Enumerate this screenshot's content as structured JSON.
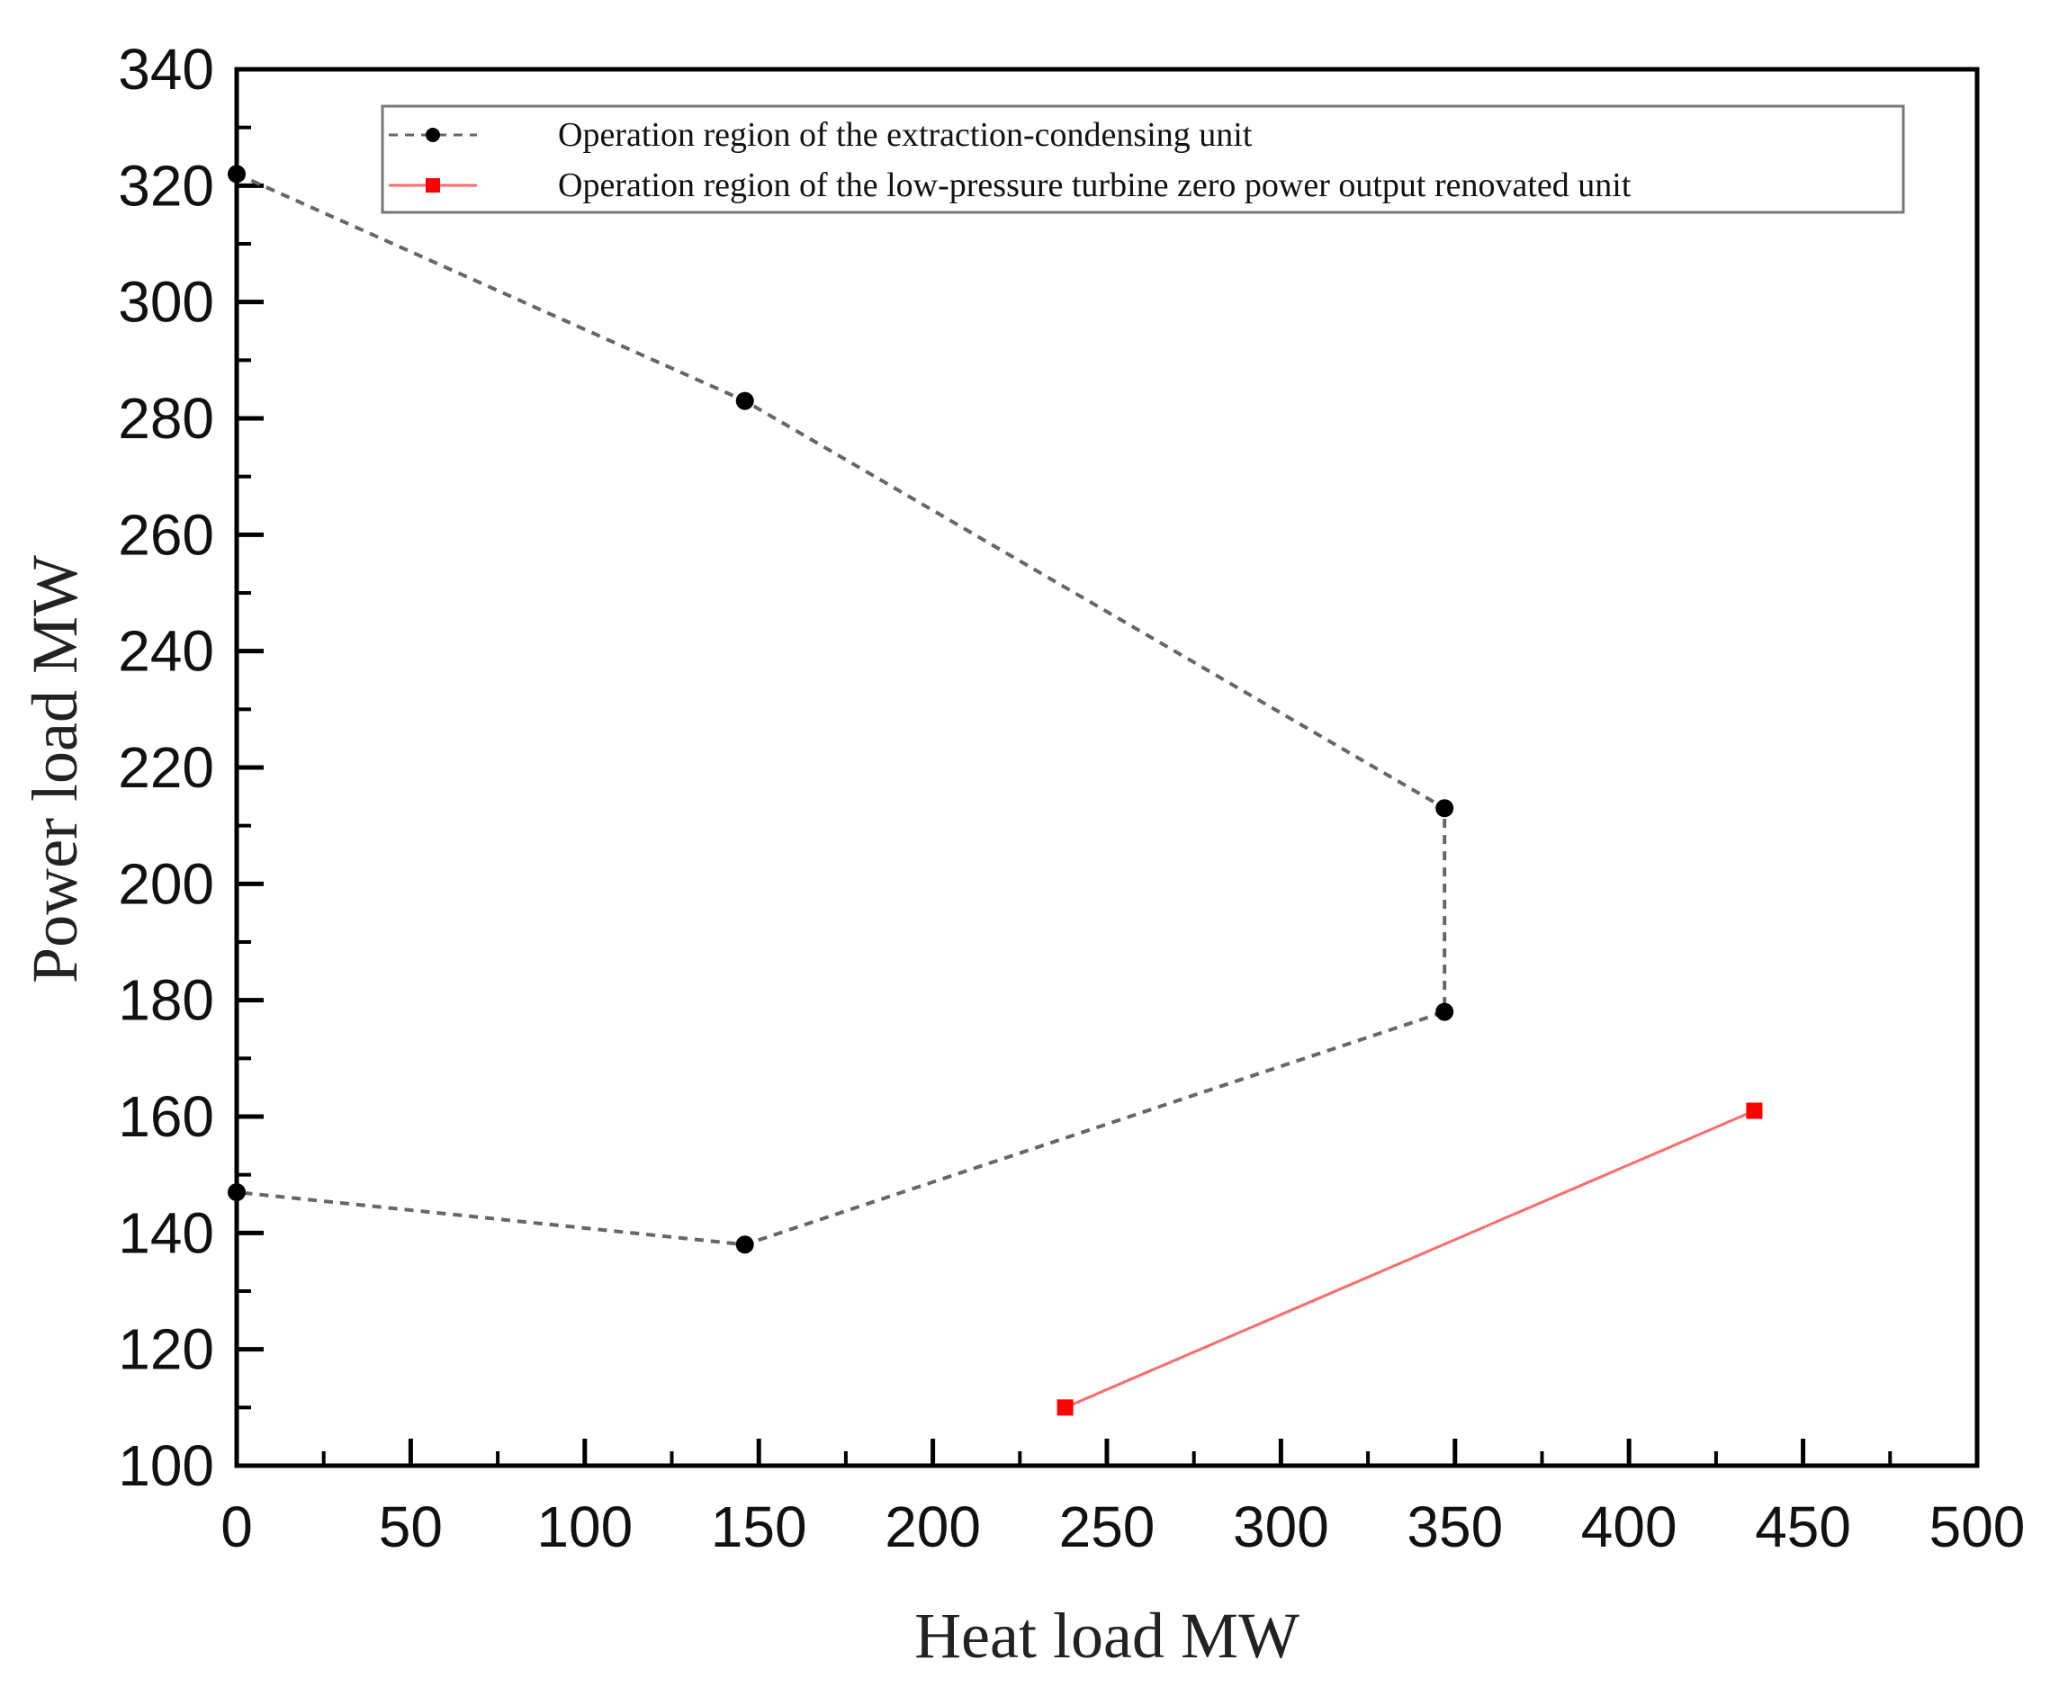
{
  "chart_data": {
    "type": "line",
    "title": "",
    "xlabel": "Heat load MW",
    "ylabel": "Power load MW",
    "xlim": [
      0,
      500
    ],
    "ylim": [
      100,
      340
    ],
    "x_ticks": [
      "0",
      "50",
      "100",
      "150",
      "200",
      "250",
      "300",
      "350",
      "400",
      "450",
      "500"
    ],
    "y_ticks": [
      "100",
      "120",
      "140",
      "160",
      "180",
      "200",
      "220",
      "240",
      "260",
      "280",
      "300",
      "320",
      "340"
    ],
    "grid": false,
    "legend_position": "top",
    "series": [
      {
        "name": "Operation region of the extraction-condensing unit",
        "color": "#000000",
        "line_color": "#666666",
        "line_style": "dashed",
        "marker": "circle",
        "points": [
          [
            0,
            322
          ],
          [
            146,
            283
          ],
          [
            347,
            213
          ],
          [
            347,
            178
          ],
          [
            146,
            138
          ],
          [
            0,
            147
          ]
        ]
      },
      {
        "name": "Operation region of the low-pressure turbine zero power output renovated unit",
        "color": "#ff0000",
        "line_color": "#ff6b6b",
        "line_style": "solid",
        "marker": "square",
        "points": [
          [
            238,
            110
          ],
          [
            436,
            161
          ]
        ]
      }
    ]
  }
}
